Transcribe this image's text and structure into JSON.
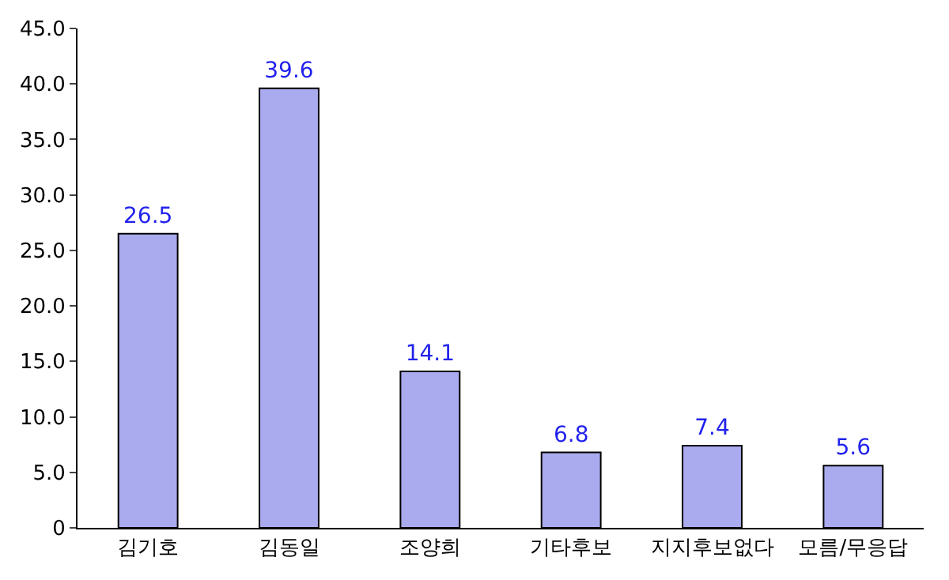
{
  "chart_data": {
    "type": "bar",
    "categories": [
      "김기호",
      "김동일",
      "조양희",
      "기타후보",
      "지지후보없다",
      "모름/무응답"
    ],
    "values": [
      26.5,
      39.6,
      14.1,
      6.8,
      7.4,
      5.6
    ],
    "color": "#aaaaee",
    "data_labels": true,
    "ylim": [
      0,
      45
    ],
    "yticks": [
      {
        "value": 0,
        "label": "0"
      },
      {
        "value": 5,
        "label": "5.0"
      },
      {
        "value": 10,
        "label": "10.0"
      },
      {
        "value": 15,
        "label": "15.0"
      },
      {
        "value": 20,
        "label": "20.0"
      },
      {
        "value": 25,
        "label": "25.0"
      },
      {
        "value": 30,
        "label": "30.0"
      },
      {
        "value": 35,
        "label": "35.0"
      },
      {
        "value": 40,
        "label": "40.0"
      },
      {
        "value": 45,
        "label": "45.0"
      }
    ],
    "legend": false
  }
}
